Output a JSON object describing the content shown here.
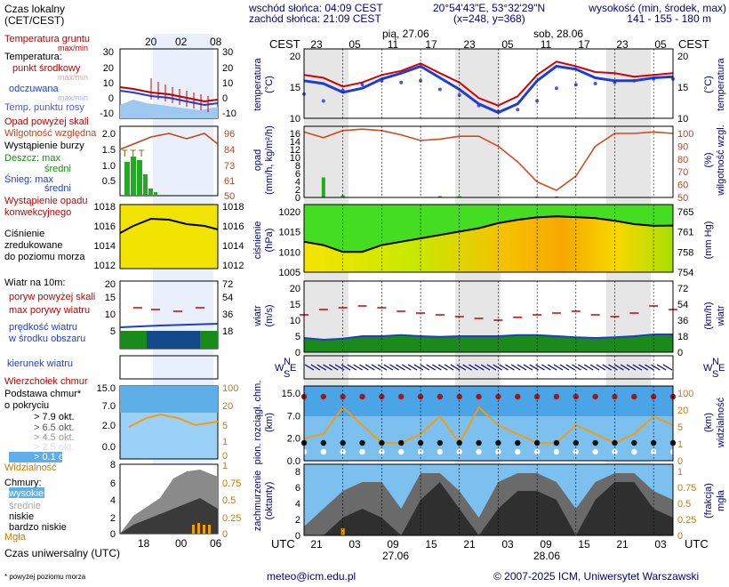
{
  "header": {
    "sunrise": "wschód słońca: 04:09 CEST",
    "sunset": "zachód słońca: 21:09 CEST",
    "coords": "20°54'43\"E, 53°32'29\"N",
    "grid": "(x=248, y=368)",
    "elev_title": "wysokość (min, środek, max)",
    "elev_values": "141 - 155 - 180 m"
  },
  "footer": {
    "email": "meteo@icm.edu.pl",
    "copyright": "© 2007-2025 ICM, Uniwersytet Warszawski",
    "note": "* powyżej poziomu morza"
  },
  "legend": {
    "local_time": "Czas lokalny",
    "local_time2": "(CET/CEST)",
    "soil_temp": "Temperatura gruntu",
    "max_min": "max/min",
    "temperature": "Temperatura:",
    "mid_point": "punkt środkowy",
    "max_min2": "max/min",
    "felt": "odczuwana",
    "max_min3": "max/min",
    "dew": "Temp. punktu rosy",
    "precip_over": "Opad powyżej skali",
    "humidity": "Wilgotność względna",
    "storm": "Wystąpienie burzy",
    "rain": "Deszcz: max",
    "rain_mean": "średni",
    "snow": "Śnieg: max",
    "snow_mean": "średni",
    "conv1": "Wystąpienie opadu",
    "conv2": "konwekcyjnego",
    "pressure1": "Ciśnienie",
    "pressure2": "zredukowane",
    "pressure3": "do poziomu morza",
    "wind10": "Wiatr na 10m:",
    "gust_over": "poryw powyżej skali",
    "gust_max": "max porywy wiatru",
    "wind_speed1": "prędkość wiatru",
    "wind_speed2": "w środku obszaru",
    "wind_dir": "kierunek wiatru",
    "cloud_top": "Wierzchołek chmur",
    "cloud_base1": "Podstawa chmur*",
    "cloud_base2": "o pokryciu",
    "okt79": "> 7.9 okt.",
    "okt65": "> 6.5 okt.",
    "okt45": "> 4.5 okt.",
    "okt25": "> 2.5 okt.",
    "okt01": "> 0.1 okt.",
    "visibility": "Widzialność",
    "clouds": "Chmury:",
    "high": "wysokie",
    "mid": "średnie",
    "low": "niskie",
    "very_low": "bardzo niskie",
    "fog": "Mgła",
    "utc_label": "Czas uniwersalny (UTC)"
  },
  "small_axes": {
    "top_ticks": [
      "20",
      "02",
      "08"
    ],
    "bottom_ticks": [
      "18",
      "00",
      "06"
    ],
    "temp_left": [
      "30",
      "20",
      "10",
      "0",
      "-10"
    ],
    "temp_right": [
      "30",
      "20",
      "10",
      "0",
      "-10"
    ],
    "precip_left": [
      "2.0",
      "1.5",
      "1.0",
      "0.5"
    ],
    "precip_right": [
      "96",
      "84",
      "73",
      "61",
      "50"
    ],
    "pres_left": [
      "1018",
      "1016",
      "1014",
      "1012"
    ],
    "pres_right": [
      "1018",
      "1016",
      "1014",
      "1012"
    ],
    "wind_left": [
      "20",
      "15",
      "10",
      "5"
    ],
    "wind_right": [
      "72",
      "54",
      "36",
      "18"
    ],
    "cloud_left": [
      "15.0",
      "7.0",
      "2.0",
      "0.0"
    ],
    "cloud_right": [
      "100",
      "20",
      "5",
      "1",
      "0"
    ],
    "vis_bottom_right": "1",
    "octa_left": [
      "8",
      "6",
      "4",
      "2",
      "0"
    ],
    "octa_right": [
      "1",
      "0.75",
      "0.5",
      "0.25",
      "0"
    ],
    "storm_marks": "T T T"
  },
  "main": {
    "cest": "CEST",
    "utc": "UTC",
    "date1_top": "pią, 27.06",
    "date2_top": "sob, 28.06",
    "date1_bottom": "27.06",
    "date2_bottom": "28.06",
    "top_ticks": [
      "23",
      "05",
      "11",
      "17",
      "23",
      "05",
      "11",
      "17",
      "23",
      "05"
    ],
    "bottom_ticks": [
      "21",
      "03",
      "09",
      "15",
      "21",
      "03",
      "09",
      "15",
      "21",
      "03"
    ],
    "temp_axis": [
      "20",
      "15",
      "10"
    ],
    "temp_label": "temperatura",
    "temp_unit": "(°C)",
    "precip_label": "opad",
    "precip_unit": "(mm/h, kg/m²/h)",
    "precip_ticks": [
      "16",
      "14",
      "12",
      "10",
      "8",
      "6",
      "4",
      "2",
      "0"
    ],
    "humid_label": "wilgotność wzgl.",
    "humid_unit": "(%)",
    "humid_ticks": [
      "100",
      "90",
      "80",
      "70",
      "60",
      "50"
    ],
    "pres_label": "ciśnienie",
    "pres_unit_hpa": "(hPa)",
    "pres_unit_mmhg": "(mm Hg)",
    "pres_ticks_left": [
      "1020",
      "1015",
      "1010",
      "1005"
    ],
    "pres_ticks_right": [
      "765",
      "761",
      "758",
      "754"
    ],
    "wind_label": "wiatr",
    "wind_unit_ms": "(m/s)",
    "wind_unit_kmh": "(km/h)",
    "wind_ticks_left": [
      "20",
      "15",
      "10",
      "5",
      "0"
    ],
    "wind_ticks_right": [
      "72",
      "54",
      "36",
      "18",
      "0"
    ],
    "compass": [
      "N",
      "W",
      "E",
      "S"
    ],
    "cloud_label": "pion. rozciągł. chm.",
    "cloud_unit": "(km)",
    "cloud_ticks": [
      "15.0",
      "7.0",
      "2.0",
      "0.0"
    ],
    "vis_label": "widzialność",
    "vis_unit": "(km)",
    "vis_ticks": [
      "100",
      "20",
      "5",
      "1",
      "0"
    ],
    "cover_label": "zachmurzenie",
    "cover_unit": "(oktanty)",
    "cover_ticks": [
      "8",
      "6",
      "4",
      "2",
      "0"
    ],
    "fog_label": "mgła",
    "fog_unit": "(frakcja)",
    "fog_ticks": [
      "1",
      "0.75",
      "0.5",
      "0.25",
      "0"
    ]
  },
  "chart_data": [
    {
      "type": "line",
      "title": "temperatura",
      "xlabel": "UTC",
      "ylabel": "temperatura (°C)",
      "x": [
        "21",
        "00",
        "03",
        "06",
        "09",
        "12",
        "15",
        "18",
        "21",
        "00",
        "03",
        "06",
        "09",
        "12",
        "15",
        "18",
        "21",
        "00",
        "03",
        "06"
      ],
      "ylim": [
        10,
        22
      ],
      "series": [
        {
          "name": "punkt środkowy",
          "values": [
            17.5,
            17.0,
            15.5,
            16.2,
            17.5,
            18.2,
            19.5,
            17.8,
            16.2,
            13.5,
            12.2,
            13.8,
            17.5,
            19.8,
            19.0,
            18.0,
            17.8,
            17.2,
            17.5,
            17.8
          ]
        },
        {
          "name": "odczuwana",
          "values": [
            16.5,
            16.0,
            14.5,
            15.2,
            16.8,
            17.8,
            19.0,
            17.0,
            15.0,
            12.5,
            11.0,
            12.5,
            16.5,
            19.0,
            18.5,
            17.0,
            16.5,
            16.5,
            17.0,
            17.2
          ]
        },
        {
          "name": "Temp. punktu rosy",
          "values": [
            14.2,
            13.0,
            14.8,
            15.8,
            16.5,
            16.2,
            16.5,
            15.0,
            14.0,
            12.2,
            11.2,
            11.5,
            13.0,
            15.2,
            15.8,
            16.0,
            16.2,
            16.5,
            16.8,
            16.8
          ]
        }
      ]
    },
    {
      "type": "line",
      "title": "opad / wilgotność względna",
      "ylabel": "opad (mm/h, kg/m²/h)",
      "x": [
        "21",
        "00",
        "03",
        "06",
        "09",
        "12",
        "15",
        "18",
        "21",
        "00",
        "03",
        "06",
        "09",
        "12",
        "15",
        "18",
        "21",
        "00",
        "03",
        "06"
      ],
      "ylim": [
        0,
        16
      ],
      "series": [
        {
          "name": "Wilgotność względna",
          "values": [
            96,
            92,
            97,
            98,
            97,
            94,
            90,
            91,
            93,
            93,
            86,
            75,
            61,
            55,
            65,
            86,
            95,
            95,
            96,
            95
          ]
        },
        {
          "name": "Deszcz: max",
          "values": [
            0,
            4.5,
            0.5,
            0,
            0,
            0,
            0,
            0.3,
            0.3,
            0,
            0,
            0,
            0.2,
            0.2,
            0,
            0,
            0,
            0,
            0,
            0
          ]
        }
      ]
    },
    {
      "type": "area",
      "title": "ciśnienie",
      "ylabel": "ciśnienie (hPa)",
      "x": [
        "21",
        "00",
        "03",
        "06",
        "09",
        "12",
        "15",
        "18",
        "21",
        "00",
        "03",
        "06",
        "09",
        "12",
        "15",
        "18",
        "21",
        "00",
        "03",
        "06"
      ],
      "ylim": [
        1002,
        1022
      ],
      "series": [
        {
          "name": "Ciśnienie zredukowane do poziomu morza",
          "values": [
            1011,
            1010,
            1008,
            1008,
            1010,
            1011,
            1012,
            1013,
            1014,
            1015,
            1016.5,
            1017.5,
            1018.2,
            1018.5,
            1018.3,
            1018,
            1017.2,
            1016.2,
            1015.7,
            1015.8
          ]
        }
      ]
    },
    {
      "type": "area",
      "title": "wiatr",
      "ylabel": "wiatr (m/s)",
      "x": [
        "21",
        "00",
        "03",
        "06",
        "09",
        "12",
        "15",
        "18",
        "21",
        "00",
        "03",
        "06",
        "09",
        "12",
        "15",
        "18",
        "21",
        "00",
        "03",
        "06"
      ],
      "ylim": [
        0,
        20
      ],
      "series": [
        {
          "name": "prędkość wiatru",
          "values": [
            4.0,
            3.5,
            3.8,
            4.5,
            4.5,
            4.8,
            4.5,
            4.3,
            4.5,
            4.5,
            4.5,
            4.8,
            4.8,
            4.5,
            4.2,
            4.0,
            4.2,
            4.5,
            5.0,
            5.0
          ]
        },
        {
          "name": "max porywy wiatru",
          "values": [
            10.5,
            12.0,
            12.5,
            13.0,
            12.5,
            11.5,
            11.0,
            10.5,
            10.0,
            9.5,
            9.0,
            9.8,
            10.5,
            11.0,
            11.5,
            10.5,
            10.0,
            11.0,
            13.0,
            12.0
          ]
        }
      ]
    },
    {
      "type": "line",
      "title": "zachmurzenie",
      "ylabel": "zachmurzenie (oktanty)",
      "x": [
        "21",
        "00",
        "03",
        "06",
        "09",
        "12",
        "15",
        "18",
        "21",
        "00",
        "03",
        "06",
        "09",
        "12",
        "15",
        "18",
        "21",
        "00",
        "03",
        "06"
      ],
      "ylim": [
        0,
        8
      ],
      "series": [
        {
          "name": "niskie",
          "values": [
            1,
            3,
            5,
            6,
            6,
            3,
            7,
            7,
            5,
            2,
            6,
            7,
            7,
            6,
            3,
            6,
            7,
            7,
            5,
            4
          ]
        },
        {
          "name": "bardzo niskie",
          "values": [
            0,
            0,
            2,
            3,
            2,
            0,
            4,
            6,
            3,
            0,
            3,
            5,
            5,
            4,
            0,
            4,
            6,
            6,
            3,
            2
          ]
        },
        {
          "name": "Mgła",
          "values": [
            0,
            0,
            0.1,
            0,
            0,
            0,
            0,
            0,
            0,
            0,
            0,
            0,
            0,
            0,
            0,
            0,
            0,
            0,
            0,
            0
          ]
        }
      ]
    }
  ]
}
